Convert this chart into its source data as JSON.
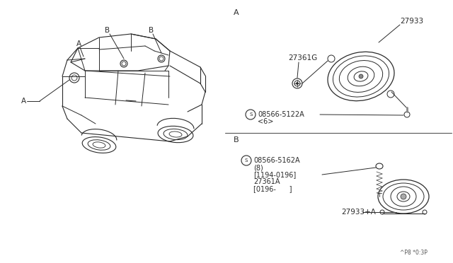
{
  "bg_color": "#ffffff",
  "line_color": "#2a2a2a",
  "text_color": "#2a2a2a",
  "page_ref": "^P8 *0:3P",
  "section_A": "A",
  "section_B": "B",
  "label_27933": "27933",
  "label_27361G": "27361G",
  "label_screw_A": "S 08566-5122A",
  "label_6": "<6>",
  "label_screw_B": "S 08566-5162A",
  "label_8": "(8)",
  "label_date1": "[1194-0196]",
  "label_27361A": "27361A",
  "label_date2": "[0196-     ]",
  "label_27933A": "27933+A",
  "label_A_car": "A",
  "label_B_car1": "B",
  "label_B_car2": "B"
}
